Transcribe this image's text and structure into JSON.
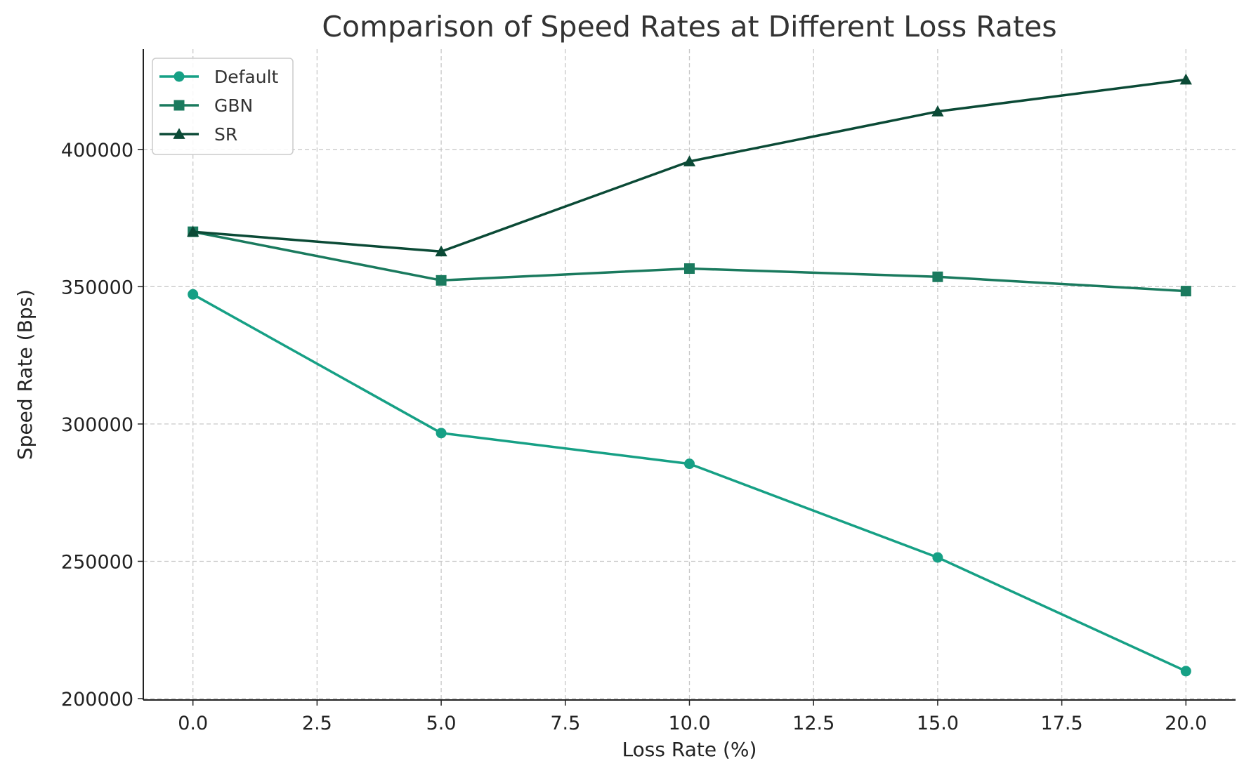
{
  "chart_data": {
    "type": "line",
    "title": "Comparison of Speed Rates at Different Loss Rates",
    "xlabel": "Loss Rate (%)",
    "ylabel": "Speed Rate (Bps)",
    "x": [
      0,
      5,
      10,
      15,
      20
    ],
    "x_ticks": [
      "0.0",
      "2.5",
      "5.0",
      "7.5",
      "10.0",
      "12.5",
      "15.0",
      "17.5",
      "20.0"
    ],
    "y_ticks": [
      "200000",
      "250000",
      "300000",
      "350000",
      "400000"
    ],
    "xlim": [
      -1,
      21
    ],
    "ylim": [
      199500,
      436500
    ],
    "grid": true,
    "legend_position": "top-left",
    "series": [
      {
        "name": "Default",
        "marker": "circle",
        "color": "#16a085",
        "values": [
          347200,
          296700,
          285500,
          251400,
          210000
        ]
      },
      {
        "name": "GBN",
        "marker": "square",
        "color": "#1a7a5e",
        "values": [
          370000,
          352300,
          356600,
          353600,
          348400
        ]
      },
      {
        "name": "SR",
        "marker": "triangle",
        "color": "#0b4a36",
        "values": [
          370000,
          362800,
          395600,
          413800,
          425400
        ]
      }
    ]
  }
}
